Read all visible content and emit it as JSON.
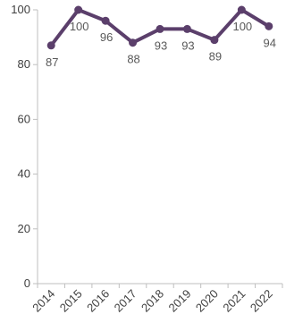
{
  "chart_data": {
    "type": "line",
    "title": "",
    "xlabel": "",
    "ylabel": "",
    "x": [
      "2014",
      "2015",
      "2016",
      "2017",
      "2018",
      "2019",
      "2020",
      "2021",
      "2022"
    ],
    "series": [
      {
        "values": [
          87,
          100,
          96,
          88,
          93,
          93,
          89,
          100,
          94
        ],
        "labels": [
          "87",
          "100",
          "96",
          "88",
          "93",
          "93",
          "89",
          "100",
          "94"
        ],
        "color": "#5b3f6b"
      }
    ],
    "ylim": [
      0,
      100
    ],
    "yticks": [
      "0",
      "20",
      "40",
      "60",
      "80",
      "100"
    ],
    "grid": false,
    "legend": "none",
    "colors": {
      "axis": "#bfbfbf",
      "tick_text": "#404040",
      "label_text": "#595959"
    }
  }
}
